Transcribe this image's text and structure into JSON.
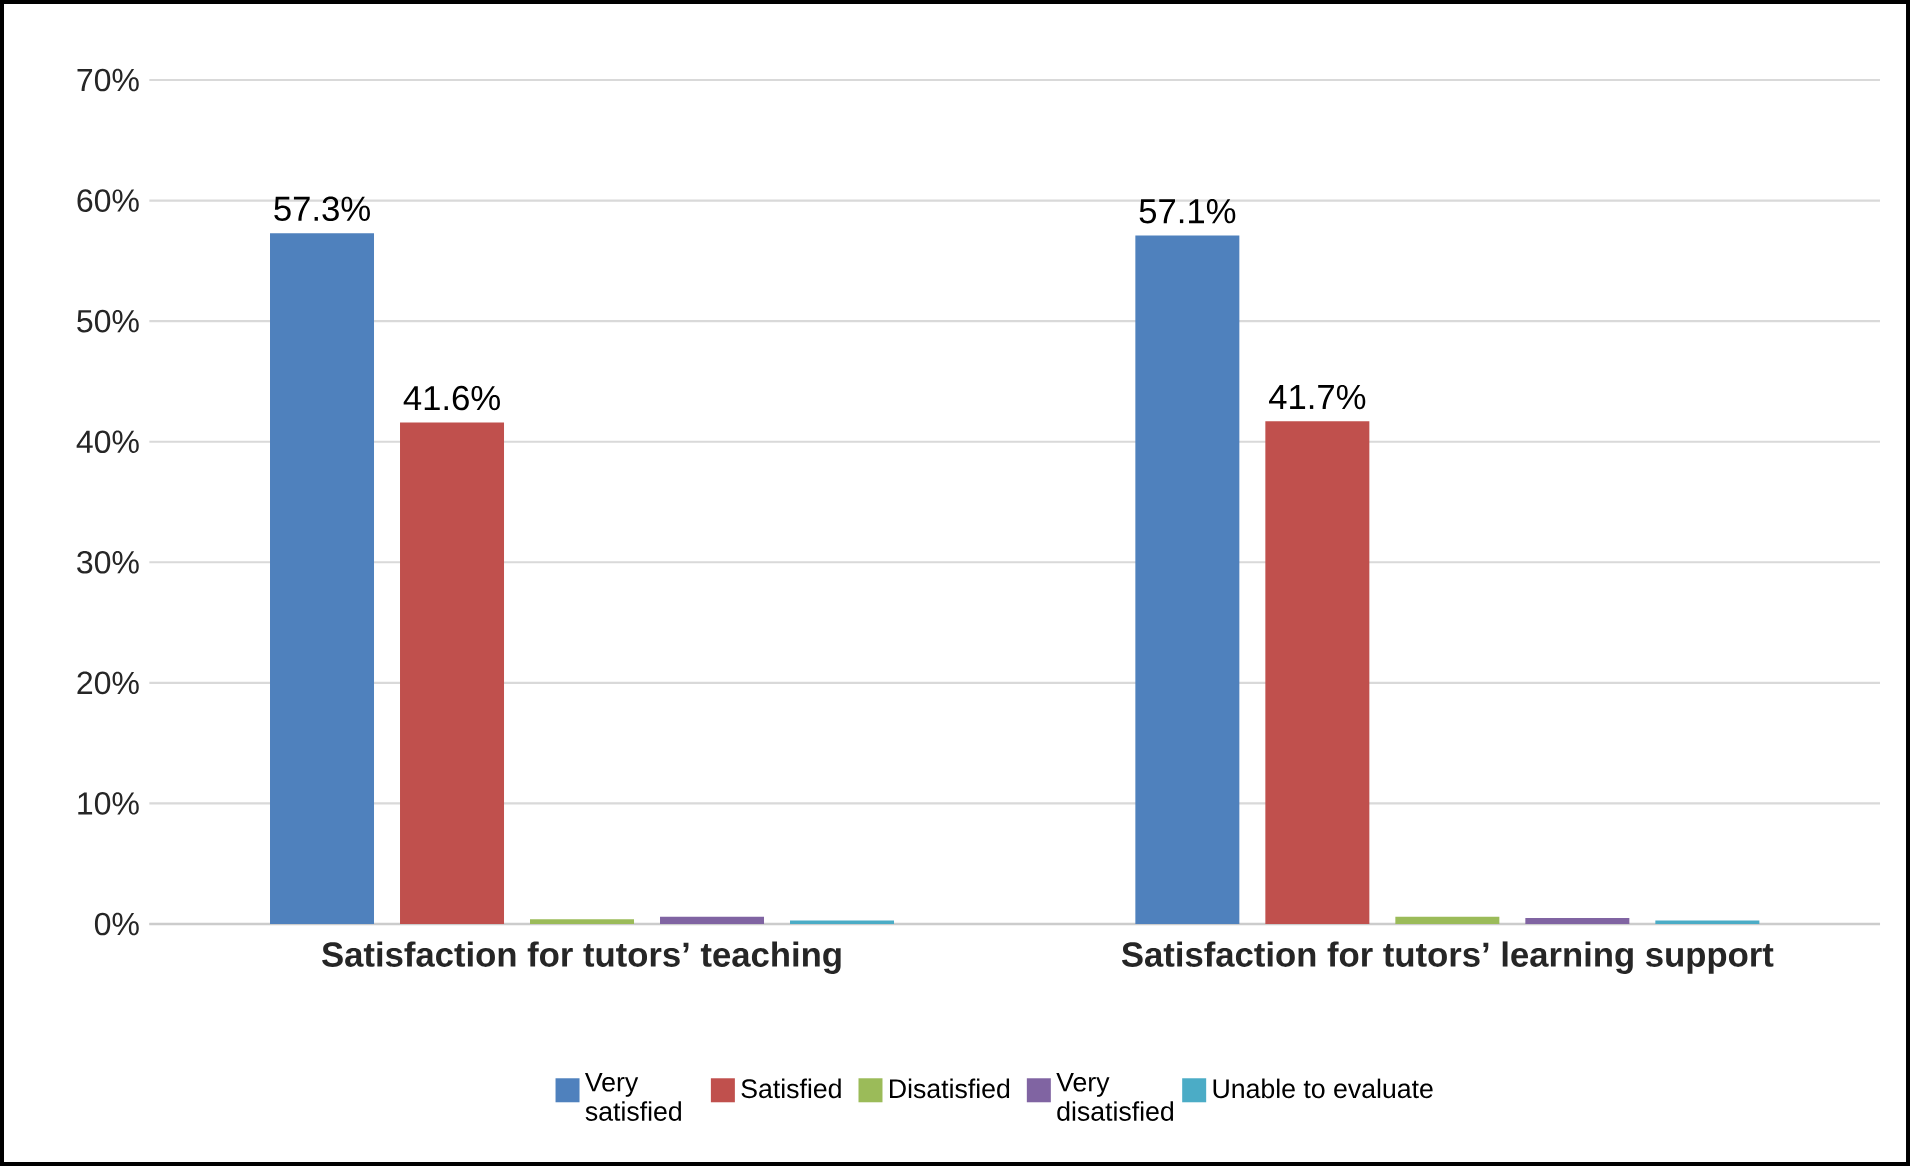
{
  "chart_data": {
    "type": "bar",
    "categories": [
      "Satisfaction for tutors’ teaching",
      "Satisfaction for tutors’ learning support"
    ],
    "series": [
      {
        "name": "Very satisfied",
        "color": "#4f81bd",
        "values": [
          57.3,
          57.1
        ],
        "value_labels": [
          "57.3%",
          "57.1%"
        ]
      },
      {
        "name": "Satisfied",
        "color": "#c0504d",
        "values": [
          41.6,
          41.7
        ],
        "value_labels": [
          "41.6%",
          "41.7%"
        ]
      },
      {
        "name": "Disatisfied",
        "color": "#9bbb59",
        "values": [
          0.4,
          0.6
        ]
      },
      {
        "name": "Very disatisfied",
        "color": "#8064a2",
        "values": [
          0.6,
          0.5
        ]
      },
      {
        "name": "Unable to evaluate",
        "color": "#4bacc6",
        "values": [
          0.3,
          0.3
        ]
      }
    ],
    "ylim": [
      0,
      70
    ],
    "yticks": [
      {
        "value": 0,
        "label": "0%"
      },
      {
        "value": 10,
        "label": "10%"
      },
      {
        "value": 20,
        "label": "20%"
      },
      {
        "value": 30,
        "label": "30%"
      },
      {
        "value": 40,
        "label": "40%"
      },
      {
        "value": 50,
        "label": "50%"
      },
      {
        "value": 60,
        "label": "60%"
      },
      {
        "value": 70,
        "label": "70%"
      }
    ],
    "grid": "y",
    "legend": "bottom"
  }
}
